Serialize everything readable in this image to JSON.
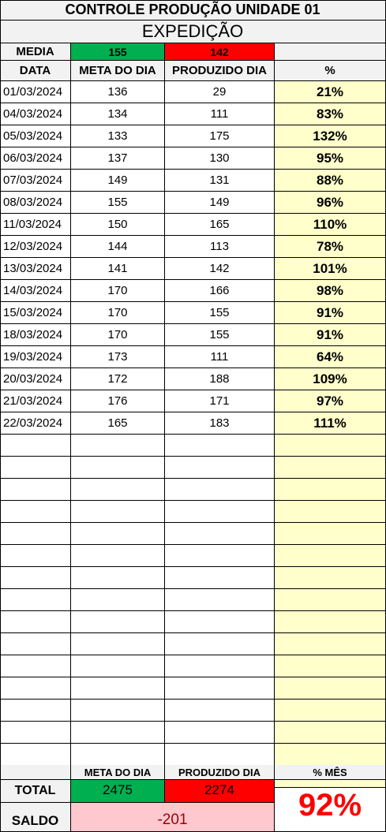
{
  "title": "CONTROLE PRODUÇÃO UNIDADE 01",
  "subtitle": "EXPEDIÇÃO",
  "media": {
    "label": "MEDIA",
    "meta": "155",
    "produzido": "142"
  },
  "headers": {
    "data": "DATA",
    "meta": "META DO DIA",
    "produzido": "PRODUZIDO DIA",
    "pct": "%"
  },
  "rows": [
    {
      "data": "01/03/2024",
      "meta": "136",
      "produzido": "29",
      "pct": "21%"
    },
    {
      "data": "04/03/2024",
      "meta": "134",
      "produzido": "111",
      "pct": "83%"
    },
    {
      "data": "05/03/2024",
      "meta": "133",
      "produzido": "175",
      "pct": "132%"
    },
    {
      "data": "06/03/2024",
      "meta": "137",
      "produzido": "130",
      "pct": "95%"
    },
    {
      "data": "07/03/2024",
      "meta": "149",
      "produzido": "131",
      "pct": "88%"
    },
    {
      "data": "08/03/2024",
      "meta": "155",
      "produzido": "149",
      "pct": "96%"
    },
    {
      "data": "11/03/2024",
      "meta": "150",
      "produzido": "165",
      "pct": "110%"
    },
    {
      "data": "12/03/2024",
      "meta": "144",
      "produzido": "113",
      "pct": "78%"
    },
    {
      "data": "13/03/2024",
      "meta": "141",
      "produzido": "142",
      "pct": "101%"
    },
    {
      "data": "14/03/2024",
      "meta": "170",
      "produzido": "166",
      "pct": "98%"
    },
    {
      "data": "15/03/2024",
      "meta": "170",
      "produzido": "155",
      "pct": "91%"
    },
    {
      "data": "18/03/2024",
      "meta": "170",
      "produzido": "155",
      "pct": "91%"
    },
    {
      "data": "19/03/2024",
      "meta": "173",
      "produzido": "111",
      "pct": "64%"
    },
    {
      "data": "20/03/2024",
      "meta": "172",
      "produzido": "188",
      "pct": "109%"
    },
    {
      "data": "21/03/2024",
      "meta": "176",
      "produzido": "171",
      "pct": "97%"
    },
    {
      "data": "22/03/2024",
      "meta": "165",
      "produzido": "183",
      "pct": "111%"
    },
    {
      "data": "",
      "meta": "",
      "produzido": "",
      "pct": ""
    },
    {
      "data": "",
      "meta": "",
      "produzido": "",
      "pct": ""
    },
    {
      "data": "",
      "meta": "",
      "produzido": "",
      "pct": ""
    },
    {
      "data": "",
      "meta": "",
      "produzido": "",
      "pct": ""
    },
    {
      "data": "",
      "meta": "",
      "produzido": "",
      "pct": ""
    },
    {
      "data": "",
      "meta": "",
      "produzido": "",
      "pct": ""
    },
    {
      "data": "",
      "meta": "",
      "produzido": "",
      "pct": ""
    },
    {
      "data": "",
      "meta": "",
      "produzido": "",
      "pct": ""
    },
    {
      "data": "",
      "meta": "",
      "produzido": "",
      "pct": ""
    },
    {
      "data": "",
      "meta": "",
      "produzido": "",
      "pct": ""
    },
    {
      "data": "",
      "meta": "",
      "produzido": "",
      "pct": ""
    },
    {
      "data": "",
      "meta": "",
      "produzido": "",
      "pct": ""
    },
    {
      "data": "",
      "meta": "",
      "produzido": "",
      "pct": ""
    },
    {
      "data": "",
      "meta": "",
      "produzido": "",
      "pct": ""
    },
    {
      "data": "",
      "meta": "",
      "produzido": "",
      "pct": ""
    },
    {
      "data": "",
      "meta": "",
      "produzido": "",
      "pct": ""
    }
  ],
  "footer": {
    "meta_header": "META DO DIA",
    "produzido_header": "PRODUZIDO DIA",
    "pct_mes_header": "% MÊS",
    "total_label": "TOTAL",
    "total_meta": "2475",
    "total_produzido": "2274",
    "pct_mes": "92%",
    "saldo_label": "SALDO",
    "saldo": "-201"
  },
  "colors": {
    "green": "#00b050",
    "red": "#ff0000",
    "yellow": "#ffffcc",
    "pink": "#ffc7ce",
    "pct_mes_text": "#ff0000"
  }
}
